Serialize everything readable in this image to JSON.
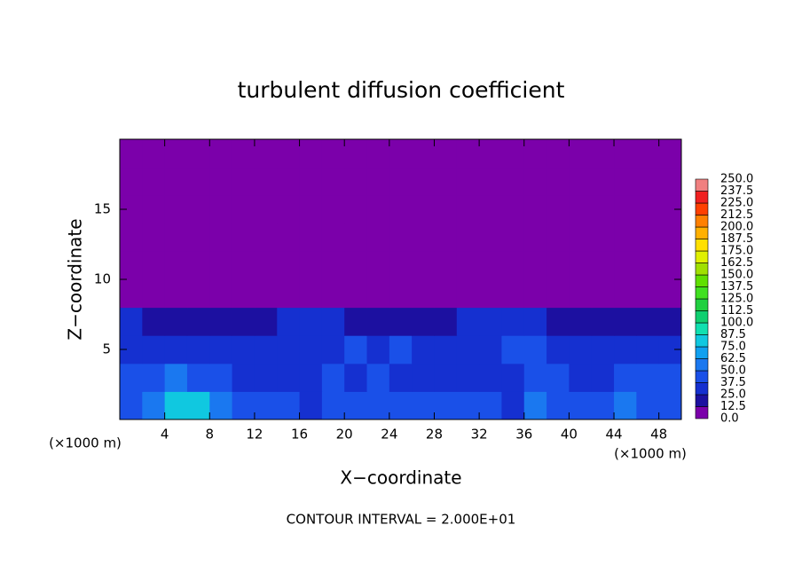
{
  "chart_data": {
    "type": "heatmap",
    "title": "turbulent diffusion coefficient",
    "x_label": "X−coordinate",
    "y_label": "Z−coordinate",
    "x_unit": "(×1000 m)",
    "annotation": "CONTOUR INTERVAL = 2.000E+01",
    "xlim": [
      0,
      50
    ],
    "ylim": [
      0,
      20
    ],
    "xticks": [
      4,
      8,
      12,
      16,
      20,
      24,
      28,
      32,
      36,
      40,
      44,
      48
    ],
    "yticks": [
      5,
      10,
      15
    ],
    "x_edges": [
      0,
      2,
      4,
      6,
      8,
      10,
      12,
      14,
      16,
      18,
      20,
      22,
      24,
      26,
      28,
      30,
      32,
      34,
      36,
      38,
      40,
      42,
      44,
      46,
      48,
      50
    ],
    "y_edges": [
      0,
      2,
      4,
      6,
      8,
      10,
      12,
      14,
      16,
      18,
      20
    ],
    "values": [
      [
        45,
        55,
        75,
        80,
        55,
        45,
        40,
        40,
        35,
        40,
        45,
        45,
        40,
        45,
        40,
        40,
        40,
        35,
        50,
        45,
        40,
        45,
        50,
        45,
        40
      ],
      [
        40,
        45,
        60,
        45,
        40,
        30,
        30,
        30,
        35,
        40,
        35,
        40,
        35,
        35,
        35,
        30,
        30,
        35,
        45,
        45,
        35,
        35,
        40,
        45,
        40
      ],
      [
        35,
        30,
        35,
        30,
        30,
        30,
        30,
        30,
        35,
        30,
        40,
        35,
        40,
        30,
        30,
        30,
        35,
        40,
        40,
        30,
        30,
        25,
        30,
        35,
        30
      ],
      [
        25,
        20,
        20,
        20,
        15,
        15,
        20,
        25,
        25,
        25,
        20,
        20,
        15,
        15,
        20,
        25,
        25,
        30,
        25,
        20,
        15,
        15,
        15,
        20,
        15
      ],
      [
        0,
        0,
        0,
        0,
        0,
        0,
        0,
        0,
        0,
        0,
        0,
        0,
        0,
        0,
        0,
        0,
        0,
        0,
        0,
        0,
        0,
        0,
        0,
        0,
        0
      ],
      [
        0,
        0,
        0,
        0,
        0,
        0,
        0,
        0,
        0,
        0,
        0,
        0,
        0,
        0,
        0,
        0,
        0,
        0,
        0,
        0,
        0,
        0,
        0,
        0,
        0
      ],
      [
        0,
        0,
        0,
        0,
        0,
        0,
        0,
        0,
        0,
        0,
        0,
        0,
        0,
        0,
        0,
        0,
        0,
        0,
        0,
        0,
        0,
        0,
        0,
        0,
        0
      ],
      [
        0,
        0,
        0,
        0,
        0,
        0,
        0,
        0,
        0,
        0,
        0,
        0,
        0,
        0,
        0,
        0,
        0,
        0,
        0,
        0,
        0,
        0,
        0,
        0,
        0
      ],
      [
        0,
        0,
        0,
        0,
        0,
        0,
        0,
        0,
        0,
        0,
        0,
        0,
        0,
        0,
        0,
        0,
        0,
        0,
        0,
        0,
        0,
        0,
        0,
        0,
        0
      ],
      [
        0,
        0,
        0,
        0,
        0,
        0,
        0,
        0,
        0,
        0,
        0,
        0,
        0,
        0,
        0,
        0,
        0,
        0,
        0,
        0,
        0,
        0,
        0,
        0,
        0
      ]
    ],
    "colorbar": {
      "levels": [
        {
          "value": 0,
          "label": "0.0"
        },
        {
          "value": 12.5,
          "label": "12.5"
        },
        {
          "value": 25,
          "label": "25.0"
        },
        {
          "value": 37.5,
          "label": "37.5"
        },
        {
          "value": 50,
          "label": "50.0"
        },
        {
          "value": 62.5,
          "label": "62.5"
        },
        {
          "value": 75,
          "label": "75.0"
        },
        {
          "value": 87.5,
          "label": "87.5"
        },
        {
          "value": 100,
          "label": "100.0"
        },
        {
          "value": 112.5,
          "label": "112.5"
        },
        {
          "value": 125,
          "label": "125.0"
        },
        {
          "value": 137.5,
          "label": "137.5"
        },
        {
          "value": 150,
          "label": "150.0"
        },
        {
          "value": 162.5,
          "label": "162.5"
        },
        {
          "value": 175,
          "label": "175.0"
        },
        {
          "value": 187.5,
          "label": "187.5"
        },
        {
          "value": 200,
          "label": "200.0"
        },
        {
          "value": 212.5,
          "label": "212.5"
        },
        {
          "value": 225,
          "label": "225.0"
        },
        {
          "value": 237.5,
          "label": "237.5"
        },
        {
          "value": 250,
          "label": "250.0"
        }
      ],
      "colors": [
        "#7b00aa",
        "#1c10a0",
        "#1530d0",
        "#1a50e8",
        "#1a78f0",
        "#10a0f0",
        "#10c8e0",
        "#10e0b0",
        "#10d070",
        "#20d040",
        "#40e020",
        "#60e000",
        "#a0e000",
        "#e0f000",
        "#ffe000",
        "#ffb000",
        "#ff8000",
        "#ff4000",
        "#f02020",
        "#f08080"
      ]
    }
  }
}
